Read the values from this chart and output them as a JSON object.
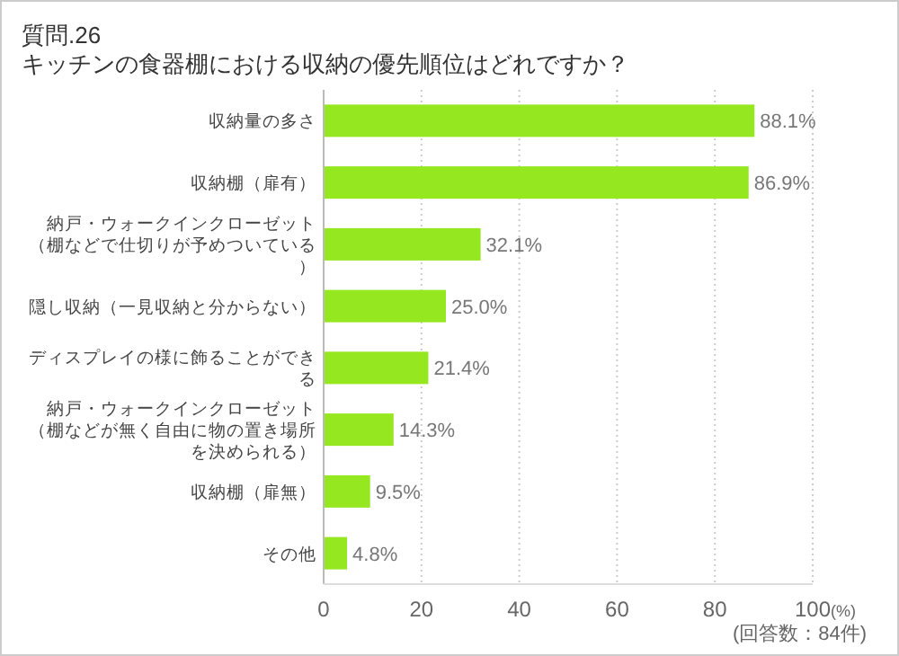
{
  "chart_data": {
    "type": "bar",
    "orientation": "horizontal",
    "title": "質問.26",
    "subtitle": "キッチンの食器棚における収納の優先順位はどれですか？",
    "categories": [
      "収納量の多さ",
      "収納棚（扉有）",
      "納戸・ウォークインクローゼット（棚などで仕切りが予めついている）",
      "隠し収納（一見収納と分からない）",
      "ディスプレイの様に飾ることができる",
      "納戸・ウォークインクローゼット（棚などが無く自由に物の置き場所を決められる）",
      "収納棚（扉無）",
      "その他"
    ],
    "values": [
      88.1,
      86.9,
      32.1,
      25.0,
      21.4,
      14.3,
      9.5,
      4.8
    ],
    "value_labels": [
      "88.1%",
      "86.9%",
      "32.1%",
      "25.0%",
      "21.4%",
      "14.3%",
      "9.5%",
      "4.8%"
    ],
    "color": "#95e81f",
    "xlim": [
      0,
      100
    ],
    "xticks": [
      0,
      20,
      40,
      60,
      80,
      100
    ],
    "xlabel": "(%)",
    "grid": "x",
    "annotations": [
      "(回答数：84件)"
    ]
  }
}
